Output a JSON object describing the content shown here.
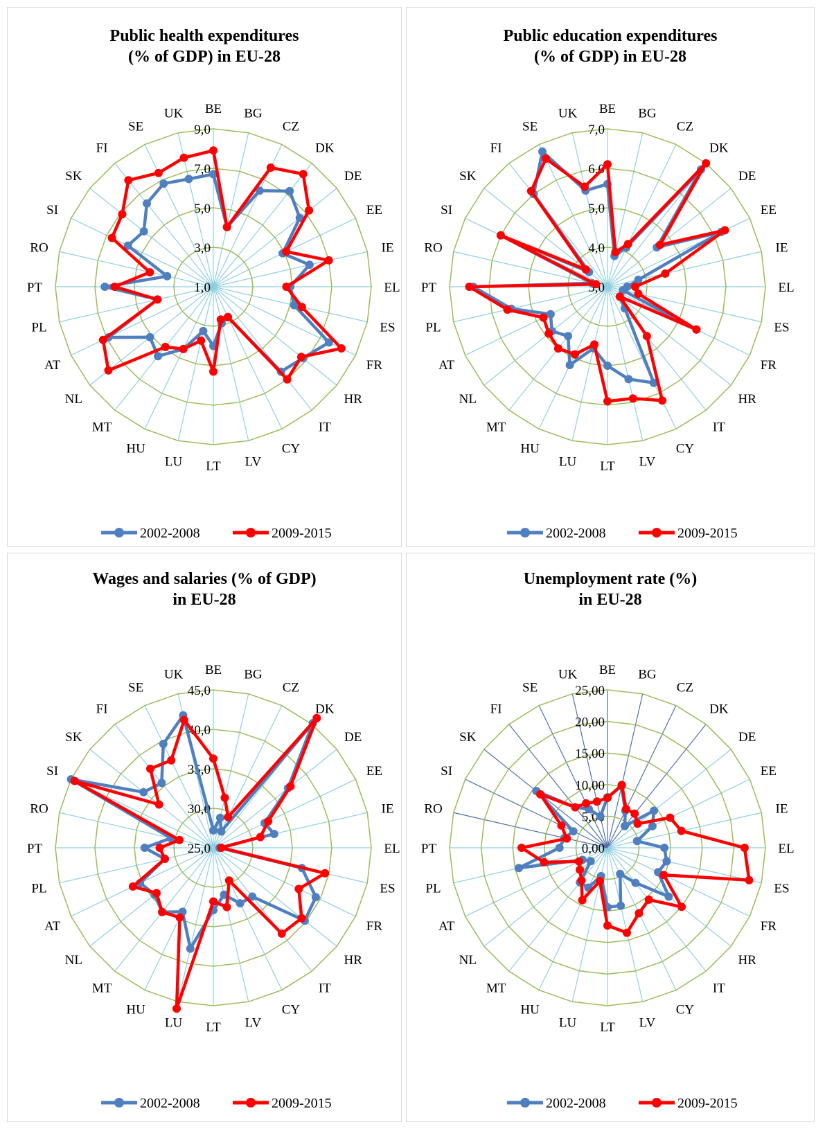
{
  "colors": {
    "series1": "#4f7fbf",
    "series2": "#ff0000",
    "grid_ring": "#9bbb59",
    "spoke": "#8fcfe0",
    "spoke_alt": "#4f6fa8"
  },
  "chart_data": [
    {
      "type": "radar",
      "title_lines": [
        "Public health expenditures",
        "(% of GDP) in EU-28"
      ],
      "categories": [
        "BE",
        "BG",
        "CZ",
        "DK",
        "DE",
        "EE",
        "IE",
        "EL",
        "ES",
        "FR",
        "HR",
        "IT",
        "CY",
        "LV",
        "LT",
        "LU",
        "HU",
        "MT",
        "NL",
        "AT",
        "PL",
        "PT",
        "RO",
        "SI",
        "SK",
        "FI",
        "SE",
        "UK"
      ],
      "rmin": 1,
      "rmax": 9,
      "ticks": [
        "1,0",
        "3,0",
        "5,0",
        "7,0",
        "9,0"
      ],
      "tick_values": [
        1,
        3,
        5,
        7,
        9
      ],
      "legend_placement": "bottom",
      "series": [
        {
          "name": "2002-2008",
          "values": [
            6.7,
            4.1,
            6.4,
            7.2,
            6.6,
            4.9,
            6.0,
            4.9,
            5.2,
            7.5,
            6.8,
            6.5,
            2.7,
            2.9,
            4.0,
            3.3,
            4.5,
            5.5,
            5.1,
            6.9,
            3.9,
            6.5,
            3.4,
            5.8,
            5.5,
            6.4,
            6.8,
            6.6
          ]
        },
        {
          "name": "2009-2015",
          "values": [
            7.9,
            4.1,
            7.7,
            8.3,
            7.2,
            5.1,
            7.0,
            4.7,
            5.6,
            8.2,
            6.7,
            7.0,
            2.7,
            2.7,
            5.3,
            3.8,
            4.5,
            4.9,
            7.8,
            7.2,
            3.9,
            6.0,
            4.3,
            6.7,
            6.9,
            7.9,
            7.4,
            7.7
          ]
        }
      ]
    },
    {
      "type": "radar",
      "title_lines": [
        "Public education expenditures",
        "(% of GDP) in EU-28"
      ],
      "categories": [
        "BE",
        "BG",
        "CZ",
        "DK",
        "DE",
        "EE",
        "IE",
        "EL",
        "ES",
        "FR",
        "HR",
        "IT",
        "CY",
        "LV",
        "LT",
        "LU",
        "HU",
        "MT",
        "NL",
        "AT",
        "PL",
        "PT",
        "RO",
        "SI",
        "SK",
        "FI",
        "SE",
        "UK"
      ],
      "rmin": 3,
      "rmax": 7,
      "ticks": [
        "3,0",
        "4,0",
        "5,0",
        "6,0",
        "7,0"
      ],
      "tick_values": [
        3,
        4,
        5,
        6,
        7
      ],
      "legend_placement": "bottom",
      "series": [
        {
          "name": "2002-2008",
          "values": [
            5.6,
            3.8,
            4.1,
            6.8,
            4.6,
            6.2,
            3.8,
            3.5,
            3.4,
            5.5,
            3.4,
            3.7,
            5.7,
            5.4,
            5.0,
            4.6,
            5.2,
            4.6,
            4.8,
            4.6,
            5.5,
            6.4,
            3.4,
            6.0,
            3.6,
            6.0,
            6.8,
            5.5
          ]
        },
        {
          "name": "2009-2015",
          "values": [
            6.1,
            3.9,
            4.2,
            7.0,
            4.7,
            6.3,
            4.5,
            3.7,
            3.8,
            5.5,
            3.4,
            4.6,
            6.2,
            5.9,
            5.9,
            4.5,
            4.9,
            5.0,
            4.9,
            4.8,
            5.6,
            6.5,
            3.3,
            6.0,
            3.7,
            6.1,
            6.6,
            5.6
          ]
        }
      ]
    },
    {
      "type": "radar",
      "title_lines": [
        "Wages and salaries (% of GDP)",
        "in EU-28"
      ],
      "categories": [
        "BE",
        "BG",
        "CZ",
        "DK",
        "DE",
        "EE",
        "IE",
        "EL",
        "ES",
        "FR",
        "HR",
        "IT",
        "CY",
        "LV",
        "LT",
        "LU",
        "HU",
        "MT",
        "NL",
        "AT",
        "PL",
        "PT",
        "RO",
        "SI",
        "SK",
        "FI",
        "SE",
        "UK"
      ],
      "rmin": 25,
      "rmax": 45,
      "ticks": [
        "25,0",
        "30,0",
        "35,0",
        "40,0",
        "45,0"
      ],
      "tick_values": [
        25,
        30,
        35,
        40,
        45
      ],
      "legend_placement": "bottom",
      "series": [
        {
          "name": "2002-2008",
          "values": [
            27.2,
            28.9,
            27.3,
            45.2,
            37.1,
            32.2,
            32.9,
            25.8,
            36.5,
            39.4,
            39.8,
            32.9,
            32.8,
            31.1,
            32.9,
            38.1,
            34.0,
            35.4,
            34.5,
            35.3,
            31.3,
            33.7,
            30.5,
            45.0,
            36.3,
            35.5,
            39.6,
            42.2
          ]
        },
        {
          "name": "2009-2015",
          "values": [
            36.3,
            31.5,
            29.3,
            46.0,
            37.5,
            32.7,
            31.1,
            26.0,
            39.5,
            37.0,
            39.3,
            38.9,
            29.6,
            32.7,
            31.8,
            45.9,
            34.8,
            35.4,
            34.2,
            36.3,
            31.3,
            31.8,
            29.4,
            44.5,
            33.8,
            37.8,
            37.3,
            41.6
          ]
        }
      ]
    },
    {
      "type": "radar",
      "title_lines": [
        "Unemployment rate (%)",
        "in EU-28"
      ],
      "categories": [
        "BE",
        "BG",
        "CZ",
        "DK",
        "DE",
        "EE",
        "IE",
        "EL",
        "ES",
        "FR",
        "HR",
        "IT",
        "CY",
        "LV",
        "LT",
        "LU",
        "HU",
        "MT",
        "NL",
        "AT",
        "PL",
        "PT",
        "RO",
        "SI",
        "SK",
        "FI",
        "SE",
        "UK"
      ],
      "rmin": 0,
      "rmax": 25,
      "ticks": [
        "0,00",
        "5,00",
        "10,00",
        "15,00",
        "20,00",
        "25,00"
      ],
      "tick_values": [
        0,
        5,
        10,
        15,
        20,
        25
      ],
      "legend_placement": "bottom",
      "series": [
        {
          "name": "2002-2008",
          "values": [
            8.0,
            10.0,
            6.5,
            4.4,
            9.4,
            7.9,
            4.8,
            9.0,
            9.6,
            8.9,
            12.4,
            7.1,
            4.6,
            9.4,
            9.4,
            4.6,
            7.0,
            7.0,
            3.4,
            4.4,
            14.4,
            7.6,
            7.0,
            6.0,
            14.4,
            8.2,
            6.8,
            5.1
          ]
        },
        {
          "name": "2009-2015",
          "values": [
            7.9,
            10.2,
            6.8,
            6.9,
            6.1,
            11.0,
            12.0,
            21.7,
            23.0,
            9.9,
            15.0,
            10.5,
            11.5,
            13.8,
            12.3,
            5.4,
            9.2,
            6.6,
            5.6,
            5.0,
            10.3,
            13.6,
            6.6,
            8.1,
            13.6,
            8.2,
            7.8,
            7.5
          ]
        }
      ]
    }
  ]
}
